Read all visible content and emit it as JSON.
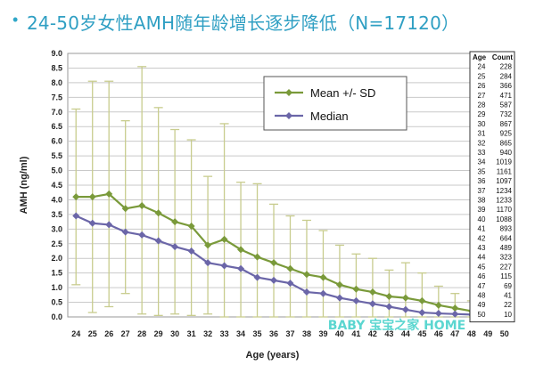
{
  "title": {
    "bullet": "•",
    "text": "24-50岁女性AMH随年龄增长逐步降低（N=17120）"
  },
  "chart_data": {
    "type": "line",
    "ylabel": "AMH (ng/ml)",
    "xlabel": "Age (years)",
    "ylim": [
      0,
      9
    ],
    "yticks": [
      "0.0",
      "0.5",
      "1.0",
      "1.5",
      "2.0",
      "2.5",
      "3.0",
      "3.5",
      "4.0",
      "4.5",
      "5.0",
      "5.5",
      "6.0",
      "6.5",
      "7.0",
      "7.5",
      "8.0",
      "8.5",
      "9.0"
    ],
    "categories": [
      "24",
      "25",
      "26",
      "27",
      "28",
      "29",
      "30",
      "31",
      "32",
      "33",
      "34",
      "35",
      "36",
      "37",
      "38",
      "39",
      "40",
      "41",
      "42",
      "43",
      "44",
      "45",
      "46",
      "47",
      "48",
      "49",
      "50"
    ],
    "series": [
      {
        "name": "Mean +/- SD",
        "color": "#7a9a3a",
        "marker": "diamond",
        "values": [
          4.1,
          4.1,
          4.2,
          3.7,
          3.8,
          3.55,
          3.25,
          3.1,
          2.45,
          2.65,
          2.3,
          2.05,
          1.85,
          1.65,
          1.45,
          1.35,
          1.1,
          0.95,
          0.85,
          0.7,
          0.65,
          0.55,
          0.4,
          0.3,
          0.2,
          0.12,
          0.06
        ],
        "upper": [
          7.1,
          8.05,
          8.05,
          6.7,
          8.55,
          7.15,
          6.4,
          6.05,
          4.8,
          6.6,
          4.6,
          4.55,
          3.85,
          3.45,
          3.3,
          2.95,
          2.45,
          2.15,
          2.0,
          1.6,
          1.85,
          1.5,
          1.05,
          0.8,
          0.55,
          0.4,
          0.2
        ],
        "lower": [
          1.1,
          0.15,
          0.35,
          0.8,
          0.1,
          0.05,
          0.1,
          0.05,
          0.1,
          0.0,
          0.0,
          0.0,
          0.0,
          0.0,
          0.0,
          0.0,
          0.0,
          0.0,
          0.0,
          0.0,
          0.0,
          0.0,
          0.0,
          0.0,
          0.0,
          0.0,
          0.0
        ]
      },
      {
        "name": "Median",
        "color": "#6b66a8",
        "marker": "diamond",
        "values": [
          3.45,
          3.2,
          3.15,
          2.9,
          2.8,
          2.6,
          2.4,
          2.25,
          1.85,
          1.75,
          1.65,
          1.35,
          1.25,
          1.15,
          0.85,
          0.8,
          0.65,
          0.55,
          0.45,
          0.35,
          0.25,
          0.15,
          0.12,
          0.1,
          0.08,
          0.05,
          0.03
        ]
      }
    ],
    "table": {
      "headers": [
        "Age",
        "Count"
      ],
      "rows": [
        [
          "24",
          "228"
        ],
        [
          "25",
          "284"
        ],
        [
          "26",
          "366"
        ],
        [
          "27",
          "471"
        ],
        [
          "28",
          "587"
        ],
        [
          "29",
          "732"
        ],
        [
          "30",
          "867"
        ],
        [
          "31",
          "925"
        ],
        [
          "32",
          "865"
        ],
        [
          "33",
          "940"
        ],
        [
          "34",
          "1019"
        ],
        [
          "35",
          "1161"
        ],
        [
          "36",
          "1097"
        ],
        [
          "37",
          "1234"
        ],
        [
          "38",
          "1233"
        ],
        [
          "39",
          "1170"
        ],
        [
          "40",
          "1088"
        ],
        [
          "41",
          "893"
        ],
        [
          "42",
          "664"
        ],
        [
          "43",
          "489"
        ],
        [
          "44",
          "323"
        ],
        [
          "45",
          "227"
        ],
        [
          "46",
          "115"
        ],
        [
          "47",
          "69"
        ],
        [
          "48",
          "41"
        ],
        [
          "49",
          "22"
        ],
        [
          "50",
          "10"
        ]
      ]
    }
  },
  "watermark": {
    "text": "BABY 宝宝之家 HOME"
  }
}
